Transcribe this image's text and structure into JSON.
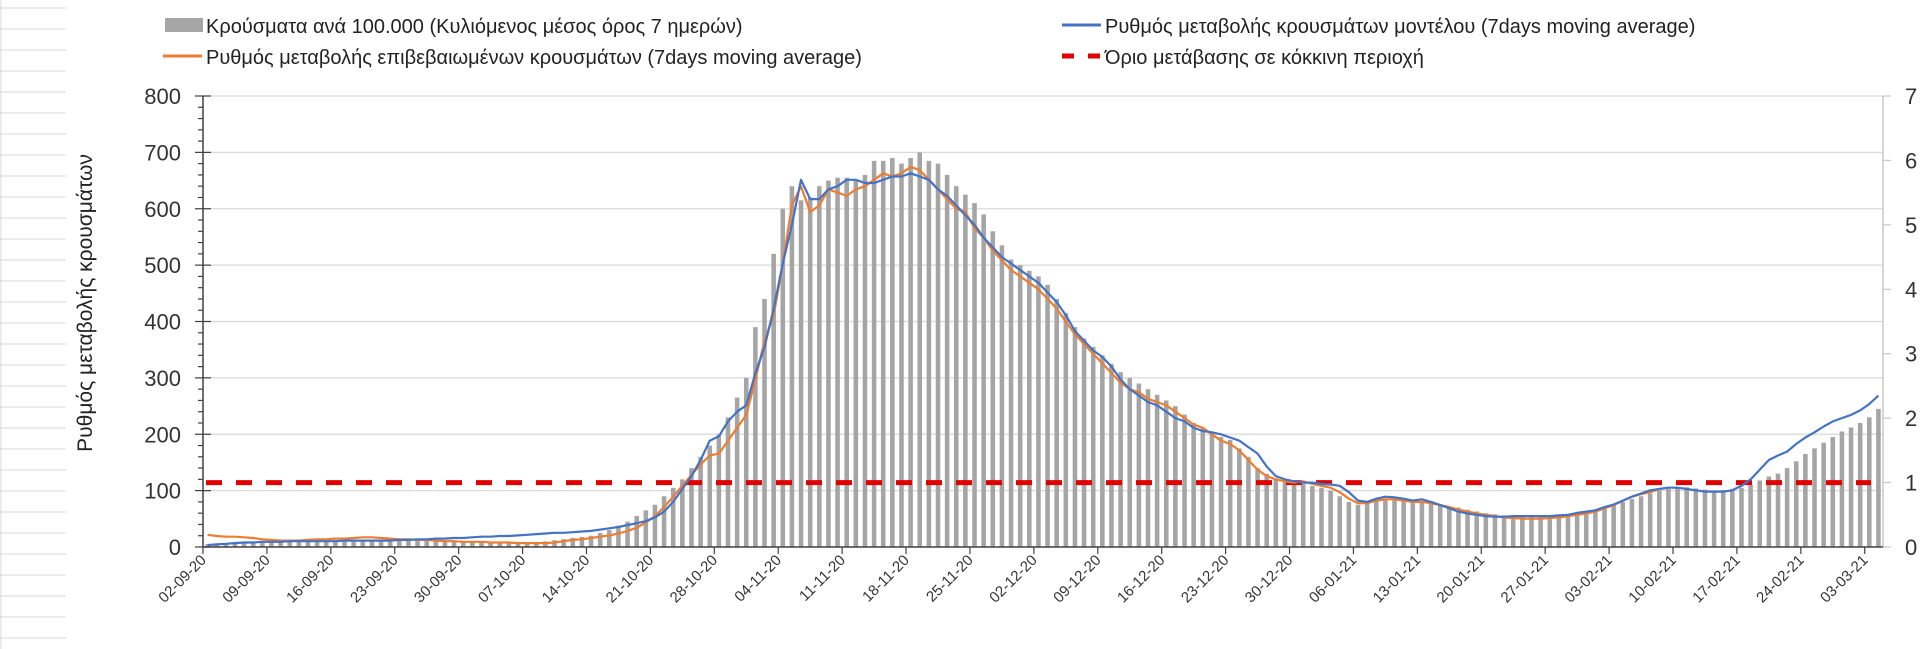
{
  "chart_data": {
    "type": "bar+line",
    "title": "",
    "ylabel": "Ρυθμός μεταβολής κρουσμάτων",
    "ylabel_right": "",
    "ylim": [
      0,
      800
    ],
    "ylim_right": [
      0,
      7
    ],
    "yticks": [
      "0",
      "100",
      "200",
      "300",
      "400",
      "500",
      "600",
      "700",
      "800"
    ],
    "yticks_right": [
      "0",
      "1",
      "2",
      "3",
      "4",
      "5",
      "6",
      "7"
    ],
    "grid": true,
    "legend_position": "top",
    "x_start": "02-09-20",
    "x_tick_step_days": 7,
    "x_tick_labels": [
      "02-09-20",
      "09-09-20",
      "16-09-20",
      "23-09-20",
      "30-09-20",
      "07-10-20",
      "14-10-20",
      "21-10-20",
      "28-10-20",
      "04-11-20",
      "11-11-20",
      "18-11-20",
      "25-11-20",
      "02-12-20",
      "09-12-20",
      "16-12-20",
      "23-12-20",
      "30-12-20",
      "06-01-21",
      "13-01-21",
      "20-01-21",
      "27-01-21",
      "03-02-21",
      "10-02-21",
      "17-02-21",
      "24-02-21",
      "03-03-21"
    ],
    "series": [
      {
        "name": "Κρούσματα ανά 100.000 (Κυλιόμενος μέσος όρος 7 ημερών)",
        "type": "bar",
        "axis": "left",
        "color": "#a5a5a5",
        "values": [
          5,
          6,
          7,
          8,
          9,
          9,
          10,
          10,
          10,
          11,
          11,
          12,
          12,
          12,
          12,
          12,
          12,
          12,
          12,
          12,
          12,
          12,
          11,
          11,
          11,
          10,
          10,
          10,
          10,
          9,
          9,
          9,
          8,
          8,
          8,
          8,
          9,
          10,
          12,
          14,
          16,
          18,
          20,
          25,
          30,
          38,
          45,
          55,
          65,
          75,
          90,
          105,
          120,
          140,
          160,
          180,
          200,
          230,
          265,
          300,
          390,
          440,
          520,
          600,
          640,
          615,
          620,
          640,
          650,
          655,
          655,
          650,
          660,
          685,
          685,
          690,
          680,
          690,
          700,
          685,
          680,
          660,
          640,
          625,
          610,
          590,
          560,
          535,
          510,
          500,
          490,
          480,
          465,
          440,
          415,
          390,
          370,
          355,
          340,
          325,
          310,
          300,
          290,
          280,
          270,
          260,
          250,
          235,
          220,
          210,
          200,
          195,
          190,
          175,
          160,
          140,
          130,
          122,
          118,
          115,
          112,
          108,
          105,
          100,
          90,
          80,
          75,
          78,
          82,
          85,
          84,
          83,
          82,
          80,
          78,
          75,
          72,
          70,
          66,
          63,
          60,
          58,
          56,
          55,
          54,
          54,
          55,
          55,
          56,
          58,
          60,
          62,
          66,
          70,
          75,
          80,
          85,
          90,
          95,
          100,
          103,
          105,
          106,
          104,
          102,
          100,
          101,
          103,
          105,
          110,
          118,
          125,
          130,
          140,
          152,
          165,
          175,
          185,
          195,
          205,
          212,
          220,
          230,
          245
        ]
      },
      {
        "name": "Ρυθμός μεταβολής κρουσμάτων μοντέλου (7days moving average)",
        "type": "line",
        "axis": "right",
        "color": "#4472c4",
        "values": [
          0.03,
          0.04,
          0.05,
          0.06,
          0.07,
          0.07,
          0.08,
          0.08,
          0.08,
          0.09,
          0.09,
          0.09,
          0.09,
          0.09,
          0.09,
          0.1,
          0.1,
          0.1,
          0.1,
          0.1,
          0.1,
          0.11,
          0.11,
          0.12,
          0.12,
          0.13,
          0.13,
          0.14,
          0.14,
          0.15,
          0.16,
          0.16,
          0.17,
          0.17,
          0.18,
          0.19,
          0.2,
          0.21,
          0.22,
          0.22,
          0.23,
          0.24,
          0.25,
          0.27,
          0.29,
          0.31,
          0.34,
          0.37,
          0.4,
          0.46,
          0.55,
          0.7,
          0.9,
          1.1,
          1.35,
          1.65,
          1.72,
          1.95,
          2.1,
          2.2,
          2.7,
          3.1,
          3.7,
          4.4,
          5.0,
          5.7,
          5.4,
          5.4,
          5.55,
          5.6,
          5.7,
          5.7,
          5.65,
          5.65,
          5.7,
          5.75,
          5.75,
          5.8,
          5.75,
          5.7,
          5.55,
          5.45,
          5.3,
          5.15,
          5.0,
          4.8,
          4.65,
          4.5,
          4.4,
          4.3,
          4.2,
          4.1,
          3.95,
          3.8,
          3.6,
          3.35,
          3.2,
          3.05,
          2.95,
          2.8,
          2.6,
          2.45,
          2.35,
          2.25,
          2.2,
          2.1,
          2.0,
          1.95,
          1.85,
          1.8,
          1.78,
          1.75,
          1.7,
          1.65,
          1.55,
          1.45,
          1.25,
          1.1,
          1.05,
          1.02,
          1.0,
          1.0,
          0.98,
          0.97,
          0.95,
          0.85,
          0.72,
          0.7,
          0.75,
          0.78,
          0.77,
          0.75,
          0.72,
          0.74,
          0.7,
          0.65,
          0.6,
          0.55,
          0.52,
          0.5,
          0.48,
          0.47,
          0.47,
          0.48,
          0.48,
          0.48,
          0.48,
          0.48,
          0.49,
          0.5,
          0.53,
          0.55,
          0.57,
          0.62,
          0.66,
          0.72,
          0.78,
          0.83,
          0.88,
          0.9,
          0.92,
          0.92,
          0.9,
          0.88,
          0.86,
          0.86,
          0.86,
          0.88,
          0.95,
          1.05,
          1.2,
          1.35,
          1.42,
          1.48,
          1.6,
          1.7,
          1.78,
          1.87,
          1.95,
          2.0,
          2.05,
          2.12,
          2.22,
          2.35
        ]
      },
      {
        "name": "Ρυθμός μεταβολής επιβεβαιωμένων κρουσμάτων (7days moving average)",
        "type": "line",
        "axis": "right",
        "color": "#ed7d31",
        "values": [
          0.19,
          0.17,
          0.16,
          0.16,
          0.15,
          0.14,
          0.12,
          0.11,
          0.1,
          0.1,
          0.1,
          0.11,
          0.12,
          0.12,
          0.13,
          0.13,
          0.14,
          0.15,
          0.15,
          0.14,
          0.13,
          0.12,
          0.12,
          0.11,
          0.11,
          0.1,
          0.09,
          0.09,
          0.08,
          0.08,
          0.08,
          0.07,
          0.07,
          0.07,
          0.06,
          0.06,
          0.06,
          0.06,
          0.07,
          0.09,
          0.11,
          0.12,
          0.14,
          0.16,
          0.18,
          0.21,
          0.25,
          0.3,
          0.38,
          0.48,
          0.62,
          0.78,
          0.95,
          1.12,
          1.28,
          1.42,
          1.45,
          1.65,
          1.85,
          2.05,
          2.6,
          3.2,
          3.6,
          4.4,
          5.3,
          5.6,
          5.2,
          5.3,
          5.55,
          5.5,
          5.45,
          5.55,
          5.6,
          5.7,
          5.8,
          5.75,
          5.8,
          5.9,
          5.85,
          5.7,
          5.55,
          5.4,
          5.25,
          5.2,
          4.95,
          4.8,
          4.6,
          4.45,
          4.3,
          4.2,
          4.1,
          4.0,
          3.85,
          3.7,
          3.5,
          3.3,
          3.15,
          3.0,
          2.85,
          2.7,
          2.55,
          2.45,
          2.4,
          2.3,
          2.25,
          2.2,
          2.1,
          2.0,
          1.9,
          1.85,
          1.75,
          1.65,
          1.6,
          1.5,
          1.35,
          1.2,
          1.1,
          1.05,
          1.02,
          1.0,
          1.02,
          0.98,
          0.95,
          0.92,
          0.85,
          0.75,
          0.68,
          0.68,
          0.72,
          0.74,
          0.74,
          0.72,
          0.7,
          0.7,
          0.68,
          0.65,
          0.62,
          0.58,
          0.55,
          0.52,
          0.5,
          0.48,
          0.46,
          0.45,
          0.44,
          0.44,
          0.44,
          0.45,
          0.46,
          0.48,
          0.5,
          0.52,
          0.55,
          0.6,
          0.65,
          0.72,
          0.78,
          0.82,
          0.85,
          0.9,
          0.92
        ]
      },
      {
        "name": "Όριο μετάβασης σε κόκκινη περιοχή",
        "type": "line",
        "style": "dashed",
        "axis": "right",
        "color": "#e00000",
        "values": [
          1
        ]
      }
    ],
    "legend": {
      "bar_label": "Κρούσματα ανά 100.000 (Κυλιόμενος μέσος όρος 7 ημερών)",
      "orange_label": "Ρυθμός μεταβολής επιβεβαιωμένων κρουσμάτων (7days moving average)",
      "blue_label": "Ρυθμός μεταβολής κρουσμάτων μοντέλου (7days moving average)",
      "red_label": "Όριο μετάβασης σε κόκκινη περιοχή"
    }
  }
}
